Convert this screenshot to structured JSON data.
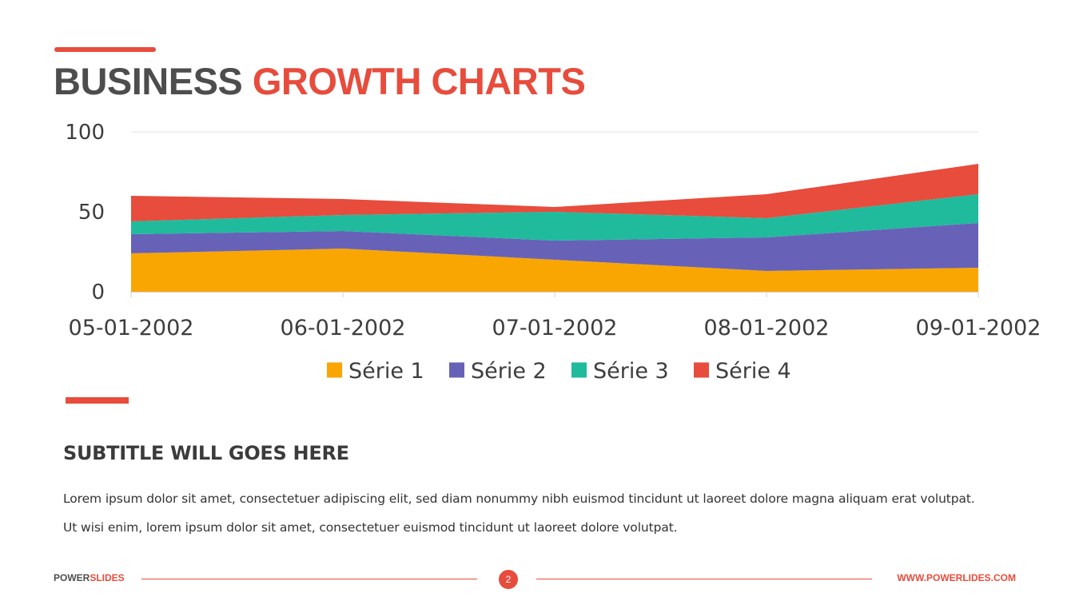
{
  "header": {
    "title_part1": "BUSINESS",
    "title_part2": "GROWTH CHARTS"
  },
  "chart_data": {
    "type": "area",
    "stacked": true,
    "categories": [
      "05-01-2002",
      "06-01-2002",
      "07-01-2002",
      "08-01-2002",
      "09-01-2002"
    ],
    "series": [
      {
        "name": "Série 1",
        "values": [
          24,
          27,
          20,
          13,
          15
        ],
        "color": "#f9a603"
      },
      {
        "name": "Série 2",
        "values": [
          12,
          11,
          12,
          21,
          28
        ],
        "color": "#6762b8"
      },
      {
        "name": "Série 3",
        "values": [
          8,
          10,
          18,
          12,
          18
        ],
        "color": "#1fbb9c"
      },
      {
        "name": "Série 4",
        "values": [
          16,
          10,
          3,
          15,
          19
        ],
        "color": "#e74c3c"
      }
    ],
    "yticks": [
      0,
      50,
      100
    ],
    "ylim": [
      0,
      100
    ],
    "grid": true,
    "legend": "bottom"
  },
  "content": {
    "subtitle": "SUBTITLE WILL GOES HERE",
    "body_line1": "Lorem ipsum dolor sit amet, consectetuer adipiscing elit, sed diam nonummy nibh euismod tincidunt ut laoreet dolore magna aliquam erat volutpat.",
    "body_line2": "Ut wisi enim, lorem ipsum dolor sit amet, consectetuer euismod tincidunt ut laoreet dolore volutpat."
  },
  "footer": {
    "brand_part1": "POWER",
    "brand_part2": "SLIDES",
    "page_number": "2",
    "url": "WWW.POWERLIDES.COM"
  }
}
